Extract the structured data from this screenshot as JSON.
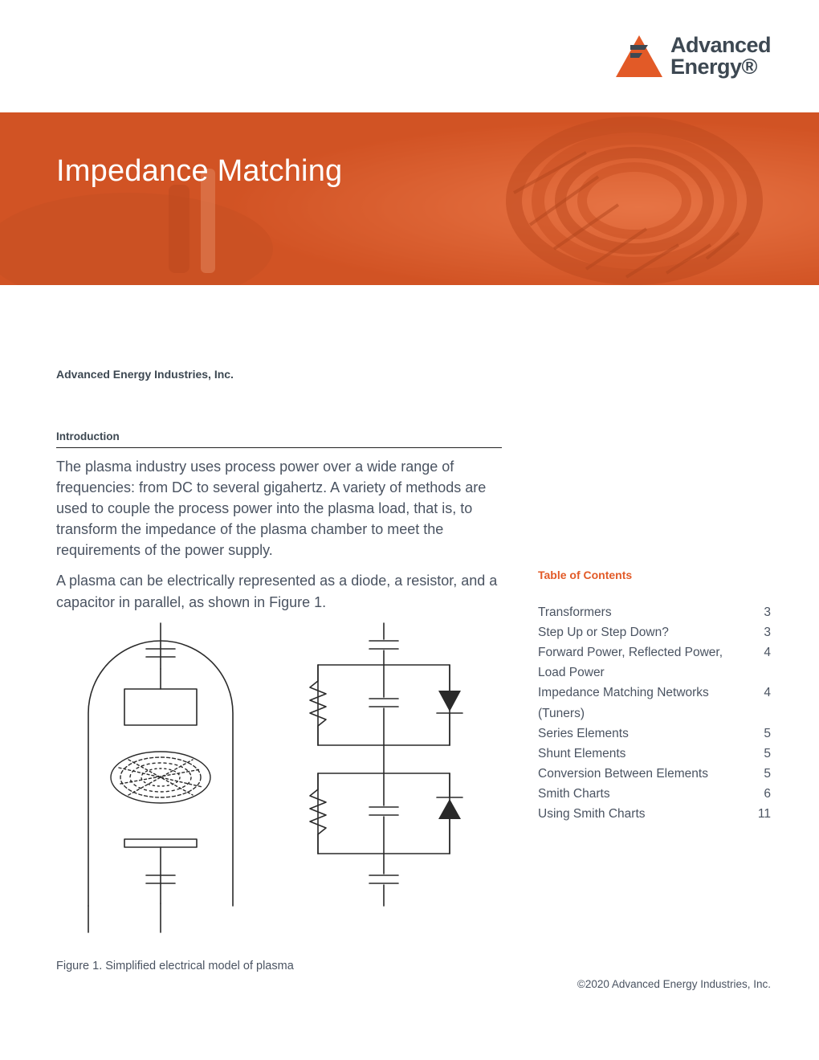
{
  "logo": {
    "line1": "Advanced",
    "line2": "Energy",
    "triangle_color": "#e25a27",
    "bars_color": "#3d4852"
  },
  "hero": {
    "title": "Impedance Matching",
    "bg_color": "#dd5a2b",
    "text_color": "#ffffff"
  },
  "company": "Advanced Energy Industries, Inc.",
  "intro_heading": "Introduction",
  "paragraphs": [
    "The plasma industry uses process power over a wide range of frequencies: from DC to several gigahertz. A variety of methods are used to couple the process power into the plasma load, that is, to transform the impedance of the plasma chamber to meet the requirements of the power supply.",
    "A plasma can be electrically represented as a diode, a resistor, and a capacitor in parallel, as shown in Figure 1."
  ],
  "toc": {
    "title": "Table of Contents",
    "title_color": "#e25a27",
    "items": [
      {
        "label": "Transformers",
        "page": "3"
      },
      {
        "label": "Step Up or Step Down?",
        "page": "3"
      },
      {
        "label": "Forward Power, Reflected Power, Load Power",
        "page": "4"
      },
      {
        "label": "Impedance Matching Networks (Tuners)",
        "page": "4"
      },
      {
        "label": "Series Elements",
        "page": "5"
      },
      {
        "label": "Shunt Elements",
        "page": "5"
      },
      {
        "label": "Conversion Between Elements",
        "page": "5"
      },
      {
        "label": "Smith Charts",
        "page": "6"
      },
      {
        "label": "Using Smith Charts",
        "page": "11"
      }
    ]
  },
  "figure": {
    "caption": "Figure 1. Simplified electrical model of plasma",
    "stroke_color": "#2a2a2a",
    "stroke_width": 1.6,
    "bg": "#ffffff"
  },
  "copyright": "©2020 Advanced Energy Industries, Inc.",
  "colors": {
    "text": "#4a5361",
    "heading": "#3d4852",
    "accent": "#e25a27",
    "page_bg": "#ffffff"
  },
  "typography": {
    "body_size_pt": 14,
    "hero_size_pt": 29,
    "toc_size_pt": 12
  }
}
